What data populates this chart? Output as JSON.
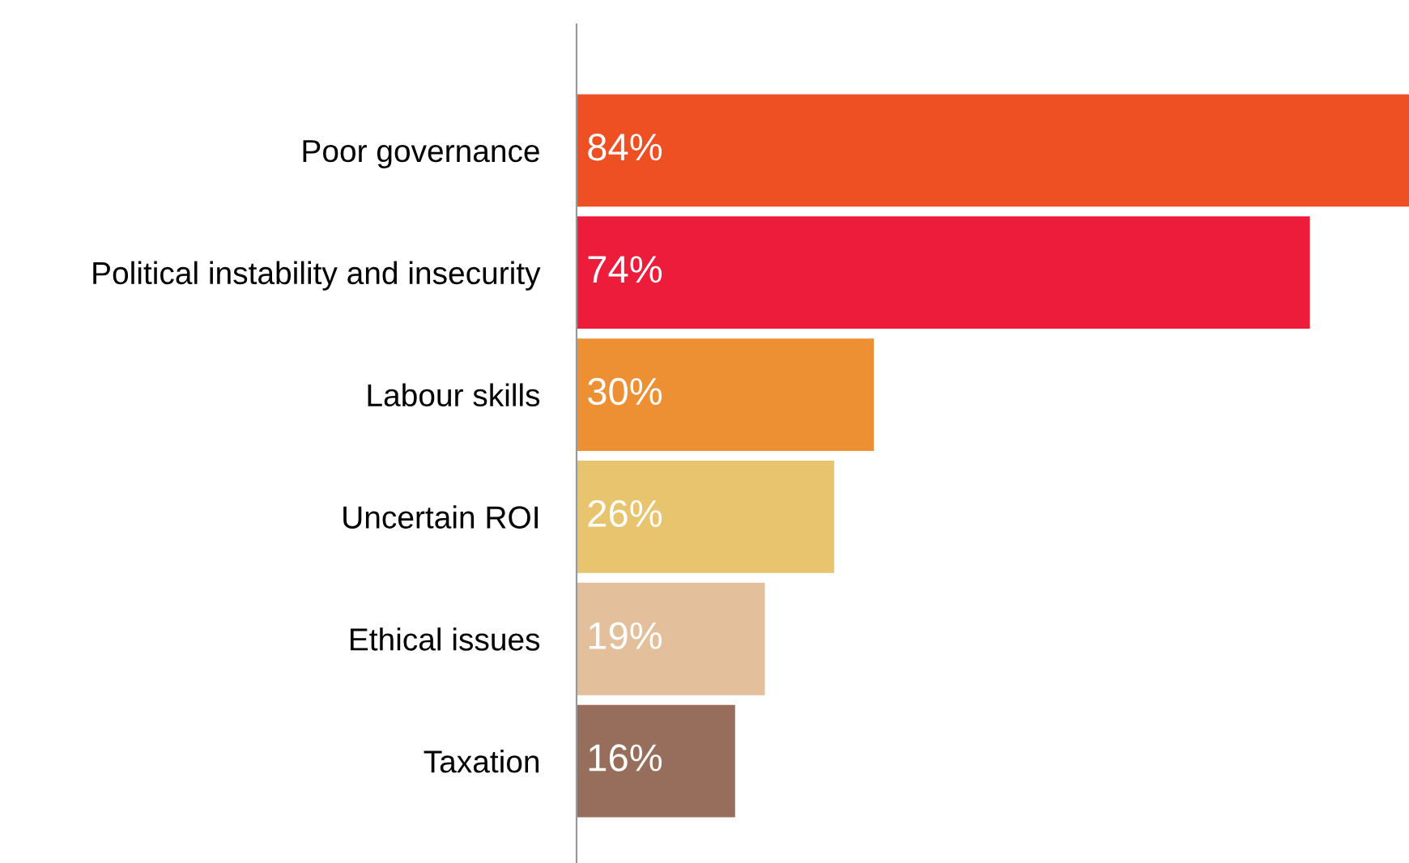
{
  "chart_data": {
    "type": "bar",
    "orientation": "horizontal",
    "categories": [
      "Poor governance",
      "Political instability and insecurity",
      "Labour skills",
      "Uncertain ROI",
      "Ethical issues",
      "Taxation"
    ],
    "values": [
      84,
      74,
      30,
      26,
      19,
      16
    ],
    "value_labels": [
      "84%",
      "74%",
      "30%",
      "26%",
      "19%",
      "16%"
    ],
    "colors": [
      "#ee4f23",
      "#ed1c3a",
      "#ed8f33",
      "#e8c46e",
      "#e3bf9c",
      "#976e5c"
    ],
    "xlim": [
      0,
      84
    ],
    "tick_labels": "y"
  }
}
